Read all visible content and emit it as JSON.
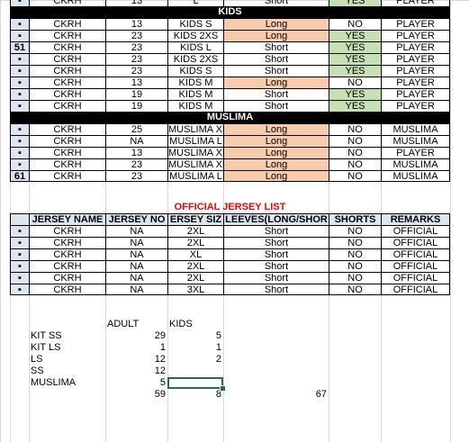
{
  "colors": {
    "header_bg": "#000000",
    "long_bg": "#f8cbad",
    "yes_bg": "#c6e0b4",
    "index_bg": "#dce6f1",
    "title_red": "#ff0000",
    "selection": "#217346"
  },
  "top_partial": [
    "CKRH",
    "13",
    "L",
    "Short",
    "YES",
    "PLAYER"
  ],
  "kids_title": "KIDS",
  "kids_rows": [
    {
      "idx": "▪",
      "team": "CKRH",
      "no": "13",
      "size": "KIDS S",
      "sleeve": "Long",
      "shorts": "NO",
      "remarks": "PLAYER"
    },
    {
      "idx": "▪",
      "team": "CKRH",
      "no": "23",
      "size": "KIDS 2XS",
      "sleeve": "Long",
      "shorts": "YES",
      "remarks": "PLAYER"
    },
    {
      "idx": "51",
      "team": "CKRH",
      "no": "23",
      "size": "KIDS L",
      "sleeve": "Short",
      "shorts": "YES",
      "remarks": "PLAYER"
    },
    {
      "idx": "▪",
      "team": "CKRH",
      "no": "23",
      "size": "KIDS 2XS",
      "sleeve": "Short",
      "shorts": "YES",
      "remarks": "PLAYER"
    },
    {
      "idx": "▪",
      "team": "CKRH",
      "no": "23",
      "size": "KIDS S",
      "sleeve": "Short",
      "shorts": "YES",
      "remarks": "PLAYER"
    },
    {
      "idx": "▪",
      "team": "CKRH",
      "no": "13",
      "size": "KIDS M",
      "sleeve": "Long",
      "shorts": "NO",
      "remarks": "PLAYER"
    },
    {
      "idx": "▪",
      "team": "CKRH",
      "no": "19",
      "size": "KIDS M",
      "sleeve": "Short",
      "shorts": "YES",
      "remarks": "PLAYER"
    },
    {
      "idx": "▪",
      "team": "CKRH",
      "no": "19",
      "size": "KIDS M",
      "sleeve": "Short",
      "shorts": "YES",
      "remarks": "PLAYER"
    }
  ],
  "muslima_title": "MUSLIMA",
  "muslima_rows": [
    {
      "idx": "▪",
      "team": "CKRH",
      "no": "25",
      "size": "MUSLIMA XL",
      "sleeve": "Long",
      "shorts": "NO",
      "remarks": "MUSLIMA"
    },
    {
      "idx": "▪",
      "team": "CKRH",
      "no": "NA",
      "size": "MUSLIMA L",
      "sleeve": "Long",
      "shorts": "NO",
      "remarks": "MUSLIMA"
    },
    {
      "idx": "▪",
      "team": "CKRH",
      "no": "13",
      "size": "MUSLIMA XL",
      "sleeve": "Long",
      "shorts": "NO",
      "remarks": "PLAYER"
    },
    {
      "idx": "▪",
      "team": "CKRH",
      "no": "23",
      "size": "MUSLIMA XL",
      "sleeve": "Long",
      "shorts": "NO",
      "remarks": "MUSLIMA"
    },
    {
      "idx": "61",
      "team": "CKRH",
      "no": "23",
      "size": "MUSLIMA L",
      "sleeve": "Long",
      "shorts": "NO",
      "remarks": "MUSLIMA"
    }
  ],
  "official_title": "OFFICIAL JERSEY LIST",
  "official_headers": [
    "JERSEY NAME",
    "JERSEY NO",
    "ERSEY SIZ",
    "LEEVES(LONG/SHOR",
    "SHORTS",
    "REMARKS"
  ],
  "official_rows": [
    {
      "idx": "▪",
      "team": "CKRH",
      "no": "NA",
      "size": "2XL",
      "sleeve": "Short",
      "shorts": "NO",
      "remarks": "OFFICIAL"
    },
    {
      "idx": "▪",
      "team": "CKRH",
      "no": "NA",
      "size": "2XL",
      "sleeve": "Short",
      "shorts": "NO",
      "remarks": "OFFICIAL"
    },
    {
      "idx": "▪",
      "team": "CKRH",
      "no": "NA",
      "size": "XL",
      "sleeve": "Short",
      "shorts": "NO",
      "remarks": "OFFICIAL"
    },
    {
      "idx": "▪",
      "team": "CKRH",
      "no": "NA",
      "size": "2XL",
      "sleeve": "Short",
      "shorts": "NO",
      "remarks": "OFFICIAL"
    },
    {
      "idx": "▪",
      "team": "CKRH",
      "no": "NA",
      "size": "2XL",
      "sleeve": "Short",
      "shorts": "NO",
      "remarks": "OFFICIAL"
    },
    {
      "idx": "▪",
      "team": "CKRH",
      "no": "NA",
      "size": "3XL",
      "sleeve": "Short",
      "shorts": "NO",
      "remarks": "OFFICIAL"
    }
  ],
  "summary": {
    "col_adult": "ADULT",
    "col_kids": "KIDS",
    "rows": [
      {
        "label": "KIT SS",
        "adult": "29",
        "kids": "5"
      },
      {
        "label": "KIT LS",
        "adult": "1",
        "kids": "1"
      },
      {
        "label": "LS",
        "adult": "12",
        "kids": "2"
      },
      {
        "label": "SS",
        "adult": "12",
        "kids": ""
      },
      {
        "label": "MUSLIMA",
        "adult": "5",
        "kids": ""
      }
    ],
    "total_adult": "59",
    "total_kids": "8",
    "grand_total": "67"
  }
}
